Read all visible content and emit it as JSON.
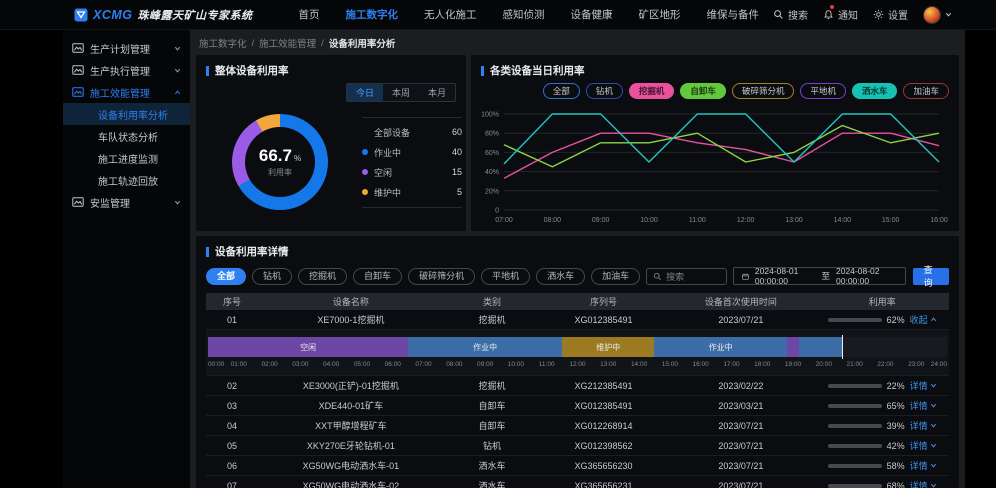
{
  "topbar": {
    "brand": {
      "logo_text": "XCMG",
      "title": "珠峰露天矿山专家系统"
    },
    "nav": [
      {
        "label": "首页",
        "active": false
      },
      {
        "label": "施工数字化",
        "active": true
      },
      {
        "label": "无人化施工",
        "active": false
      },
      {
        "label": "感知侦测",
        "active": false
      },
      {
        "label": "设备健康",
        "active": false
      },
      {
        "label": "矿区地形",
        "active": false
      },
      {
        "label": "维保与备件",
        "active": false
      }
    ],
    "actions": {
      "search": "搜索",
      "notifications": "通知",
      "settings": "设置"
    }
  },
  "sidebar": {
    "groups": [
      {
        "label": "生产计划管理",
        "expanded": false,
        "active": false,
        "children": []
      },
      {
        "label": "生产执行管理",
        "expanded": false,
        "active": false,
        "children": []
      },
      {
        "label": "施工效能管理",
        "expanded": true,
        "active": true,
        "children": [
          {
            "label": "设备利用率分析",
            "active": true
          },
          {
            "label": "车队状态分析",
            "active": false
          },
          {
            "label": "施工进度监测",
            "active": false
          },
          {
            "label": "施工轨迹回放",
            "active": false
          }
        ]
      },
      {
        "label": "安监管理",
        "expanded": false,
        "active": false,
        "children": []
      }
    ]
  },
  "breadcrumb": [
    "施工数字化",
    "施工效能管理",
    "设备利用率分析"
  ],
  "overall_panel": {
    "title": "整体设备利用率",
    "tabs": [
      {
        "label": "今日",
        "active": true
      },
      {
        "label": "本周",
        "active": false
      },
      {
        "label": "本月",
        "active": false
      }
    ],
    "donut": {
      "value": "66.7",
      "unit": "%",
      "label": "利用率",
      "segments": [
        {
          "name": "作业中",
          "value": 40,
          "color": "#1478e8"
        },
        {
          "name": "空闲",
          "value": 15,
          "color": "#9a5be6"
        },
        {
          "name": "维护中",
          "value": 5,
          "color": "#f0a83a"
        }
      ]
    },
    "legend": [
      {
        "label": "全部设备",
        "value": 60,
        "color": ""
      },
      {
        "label": "作业中",
        "value": 40,
        "color": "#1478e8"
      },
      {
        "label": "空闲",
        "value": 15,
        "color": "#9a5be6"
      },
      {
        "label": "维护中",
        "value": 5,
        "color": "#f0a83a"
      }
    ]
  },
  "category_panel": {
    "title": "各类设备当日利用率",
    "chips": [
      {
        "label": "全部",
        "style": "outline",
        "color": "#2f6fd6"
      },
      {
        "label": "钻机",
        "style": "outline",
        "color": "#2b4fb0"
      },
      {
        "label": "挖掘机",
        "style": "filled",
        "color": "#e8519e"
      },
      {
        "label": "自卸车",
        "style": "filled",
        "color": "#63c93c"
      },
      {
        "label": "破碎筛分机",
        "style": "outline",
        "color": "#a5801f"
      },
      {
        "label": "平地机",
        "style": "outline",
        "color": "#7a3fd0"
      },
      {
        "label": "洒水车",
        "style": "filled",
        "color": "#17c2b5"
      },
      {
        "label": "加油车",
        "style": "outline",
        "color": "#9a3636"
      }
    ],
    "chart_data": {
      "type": "line",
      "x": [
        "07:00",
        "08:00",
        "09:00",
        "10:00",
        "11:00",
        "12:00",
        "13:00",
        "14:00",
        "15:00",
        "16:00"
      ],
      "y_ticks": [
        0,
        20,
        40,
        60,
        80,
        100
      ],
      "ylim": [
        0,
        100
      ],
      "grid": true,
      "series": [
        {
          "name": "挖掘机",
          "color": "#e8519e",
          "values": [
            33,
            60,
            80,
            80,
            70,
            63,
            50,
            80,
            80,
            67
          ]
        },
        {
          "name": "自卸车",
          "color": "#8bd448",
          "values": [
            68,
            45,
            70,
            70,
            80,
            50,
            60,
            88,
            70,
            80
          ]
        },
        {
          "name": "洒水车",
          "color": "#22c7c0",
          "values": [
            48,
            100,
            100,
            50,
            100,
            100,
            50,
            100,
            100,
            50
          ]
        }
      ]
    }
  },
  "detail_panel": {
    "title": "设备利用率详情",
    "filters": [
      {
        "label": "全部",
        "active": true
      },
      {
        "label": "钻机",
        "active": false
      },
      {
        "label": "挖掘机",
        "active": false
      },
      {
        "label": "自卸车",
        "active": false
      },
      {
        "label": "破碎筛分机",
        "active": false
      },
      {
        "label": "平地机",
        "active": false
      },
      {
        "label": "洒水车",
        "active": false
      },
      {
        "label": "加油车",
        "active": false
      }
    ],
    "search_placeholder": "搜索",
    "date_range": {
      "start": "2024-08-01 00:00:00",
      "separator": "至",
      "end": "2024-08-02 00:00:00"
    },
    "query_button": "查询",
    "table": {
      "columns": [
        "序号",
        "设备名称",
        "类别",
        "序列号",
        "设备首次使用时间",
        "利用率"
      ],
      "rows": [
        {
          "no": "01",
          "name": "XE7000-1挖掘机",
          "type": "挖掘机",
          "serial": "XG012385491",
          "first_use": "2023/07/21",
          "utilization": 62,
          "link": "收起",
          "expanded": true
        },
        {
          "no": "02",
          "name": "XE3000(正铲)-01挖掘机",
          "type": "挖掘机",
          "serial": "XG212385491",
          "first_use": "2023/02/22",
          "utilization": 22,
          "link": "详情",
          "expanded": false
        },
        {
          "no": "03",
          "name": "XDE440-01矿车",
          "type": "自卸车",
          "serial": "XG012385491",
          "first_use": "2023/03/21",
          "utilization": 65,
          "link": "详情",
          "expanded": false
        },
        {
          "no": "04",
          "name": "XXT甲醇增程矿车",
          "type": "自卸车",
          "serial": "XG012268914",
          "first_use": "2023/07/21",
          "utilization": 39,
          "link": "详情",
          "expanded": false
        },
        {
          "no": "05",
          "name": "XKY270E牙轮钻机-01",
          "type": "钻机",
          "serial": "XG012398562",
          "first_use": "2023/07/21",
          "utilization": 42,
          "link": "详情",
          "expanded": false
        },
        {
          "no": "06",
          "name": "XG50WG电动洒水车-01",
          "type": "洒水车",
          "serial": "XG365656230",
          "first_use": "2023/07/21",
          "utilization": 58,
          "link": "详情",
          "expanded": false
        },
        {
          "no": "07",
          "name": "XG50WG电动洒水车-02",
          "type": "洒水车",
          "serial": "XG365656231",
          "first_use": "2023/07/21",
          "utilization": 68,
          "link": "详情",
          "expanded": false
        }
      ]
    },
    "timeline": {
      "status_colors": {
        "idle": "#6e46a5",
        "working": "#3c6da6",
        "maintenance": "#9c7a22"
      },
      "segments": [
        {
          "label": "空闲",
          "from": 0,
          "to": 6.5,
          "status": "idle"
        },
        {
          "label": "作业中",
          "from": 6.5,
          "to": 11.5,
          "status": "working"
        },
        {
          "label": "维护中",
          "from": 11.5,
          "to": 14.5,
          "status": "maintenance"
        },
        {
          "label": "作业中",
          "from": 14.5,
          "to": 18.8,
          "status": "working"
        },
        {
          "label": "",
          "from": 18.8,
          "to": 19.2,
          "status": "idle"
        },
        {
          "label": "",
          "from": 19.2,
          "to": 20.6,
          "status": "working"
        }
      ],
      "marker_hour": 20.6,
      "total_hours": 24,
      "hours": [
        "00:00",
        "01:00",
        "02:00",
        "03:00",
        "04:00",
        "05:00",
        "06:00",
        "07:00",
        "08:00",
        "09:00",
        "10:00",
        "11:00",
        "12:00",
        "13:00",
        "14:00",
        "15:00",
        "16:00",
        "17:00",
        "18:00",
        "19:00",
        "20:00",
        "21:00",
        "22:00",
        "23:00",
        "24:00"
      ]
    }
  }
}
